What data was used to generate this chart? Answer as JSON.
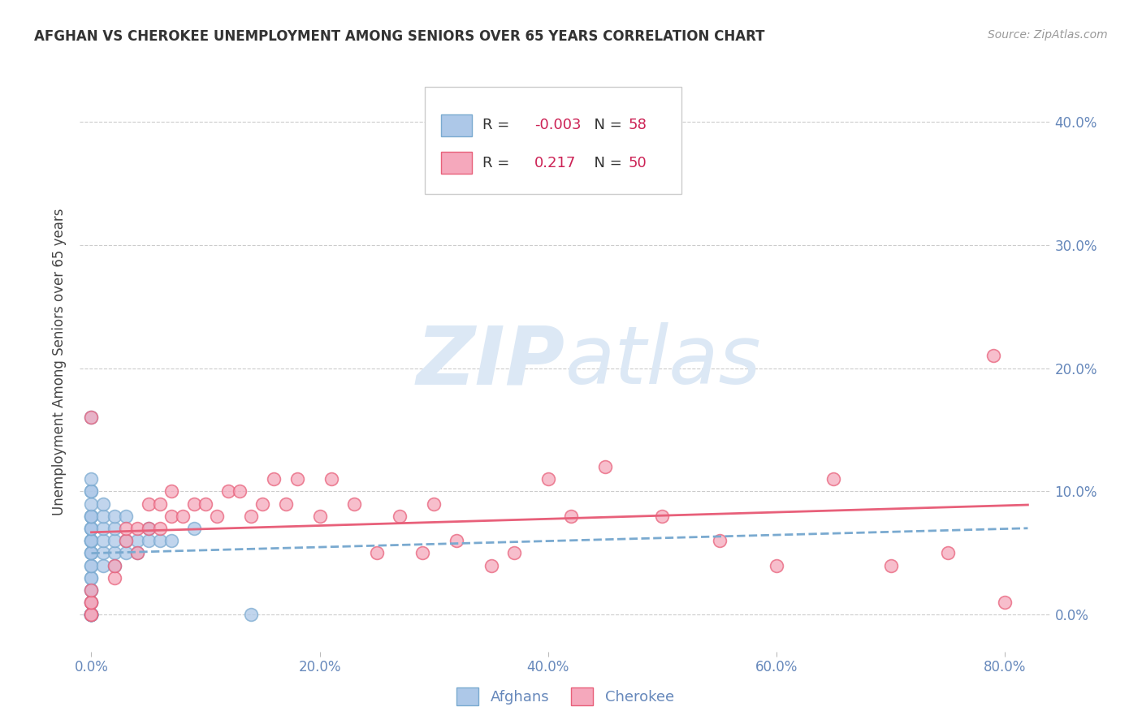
{
  "title": "AFGHAN VS CHEROKEE UNEMPLOYMENT AMONG SENIORS OVER 65 YEARS CORRELATION CHART",
  "source": "Source: ZipAtlas.com",
  "ylabel": "Unemployment Among Seniors over 65 years",
  "xlabel_ticks": [
    "0.0%",
    "20.0%",
    "40.0%",
    "60.0%",
    "80.0%"
  ],
  "ylabel_ticks": [
    "0.0%",
    "10.0%",
    "20.0%",
    "30.0%",
    "40.0%"
  ],
  "xlim": [
    -0.01,
    0.84
  ],
  "ylim": [
    -0.03,
    0.44
  ],
  "afghan_R": "-0.003",
  "afghan_N": "58",
  "cherokee_R": "0.217",
  "cherokee_N": "50",
  "afghan_color": "#adc8e8",
  "cherokee_color": "#f5a8bc",
  "afghan_line_color": "#7aaad0",
  "cherokee_line_color": "#e8607a",
  "watermark_zip": "ZIP",
  "watermark_atlas": "atlas",
  "watermark_color": "#dce8f5",
  "legend_label_afghan": "Afghans",
  "legend_label_cherokee": "Cherokee",
  "r_n_color": "#cc2255",
  "afghan_x": [
    0.0,
    0.0,
    0.0,
    0.0,
    0.0,
    0.0,
    0.0,
    0.0,
    0.0,
    0.0,
    0.0,
    0.0,
    0.0,
    0.0,
    0.0,
    0.0,
    0.0,
    0.0,
    0.0,
    0.0,
    0.0,
    0.0,
    0.0,
    0.0,
    0.0,
    0.0,
    0.0,
    0.0,
    0.0,
    0.0,
    0.0,
    0.0,
    0.0,
    0.0,
    0.0,
    0.0,
    0.01,
    0.01,
    0.01,
    0.01,
    0.01,
    0.01,
    0.02,
    0.02,
    0.02,
    0.02,
    0.02,
    0.03,
    0.03,
    0.03,
    0.04,
    0.04,
    0.05,
    0.05,
    0.06,
    0.07,
    0.09,
    0.14
  ],
  "afghan_y": [
    0.0,
    0.0,
    0.0,
    0.0,
    0.0,
    0.0,
    0.0,
    0.0,
    0.0,
    0.0,
    0.01,
    0.01,
    0.02,
    0.02,
    0.03,
    0.03,
    0.04,
    0.04,
    0.05,
    0.05,
    0.05,
    0.06,
    0.06,
    0.06,
    0.06,
    0.07,
    0.07,
    0.07,
    0.08,
    0.08,
    0.08,
    0.09,
    0.1,
    0.1,
    0.11,
    0.16,
    0.04,
    0.05,
    0.06,
    0.07,
    0.08,
    0.09,
    0.04,
    0.05,
    0.06,
    0.07,
    0.08,
    0.05,
    0.06,
    0.08,
    0.05,
    0.06,
    0.06,
    0.07,
    0.06,
    0.06,
    0.07,
    0.0
  ],
  "cherokee_x": [
    0.0,
    0.0,
    0.0,
    0.0,
    0.0,
    0.0,
    0.02,
    0.02,
    0.03,
    0.03,
    0.04,
    0.04,
    0.05,
    0.05,
    0.06,
    0.06,
    0.07,
    0.07,
    0.08,
    0.09,
    0.1,
    0.11,
    0.12,
    0.13,
    0.14,
    0.15,
    0.16,
    0.17,
    0.18,
    0.2,
    0.21,
    0.23,
    0.25,
    0.27,
    0.29,
    0.3,
    0.32,
    0.35,
    0.37,
    0.4,
    0.42,
    0.45,
    0.5,
    0.55,
    0.6,
    0.65,
    0.7,
    0.75,
    0.79,
    0.8
  ],
  "cherokee_y": [
    0.0,
    0.0,
    0.01,
    0.01,
    0.02,
    0.16,
    0.03,
    0.04,
    0.06,
    0.07,
    0.05,
    0.07,
    0.07,
    0.09,
    0.07,
    0.09,
    0.08,
    0.1,
    0.08,
    0.09,
    0.09,
    0.08,
    0.1,
    0.1,
    0.08,
    0.09,
    0.11,
    0.09,
    0.11,
    0.08,
    0.11,
    0.09,
    0.05,
    0.08,
    0.05,
    0.09,
    0.06,
    0.04,
    0.05,
    0.11,
    0.08,
    0.12,
    0.08,
    0.06,
    0.04,
    0.11,
    0.04,
    0.05,
    0.21,
    0.01
  ],
  "background_color": "#ffffff",
  "grid_color": "#cccccc",
  "tick_color": "#6688bb"
}
